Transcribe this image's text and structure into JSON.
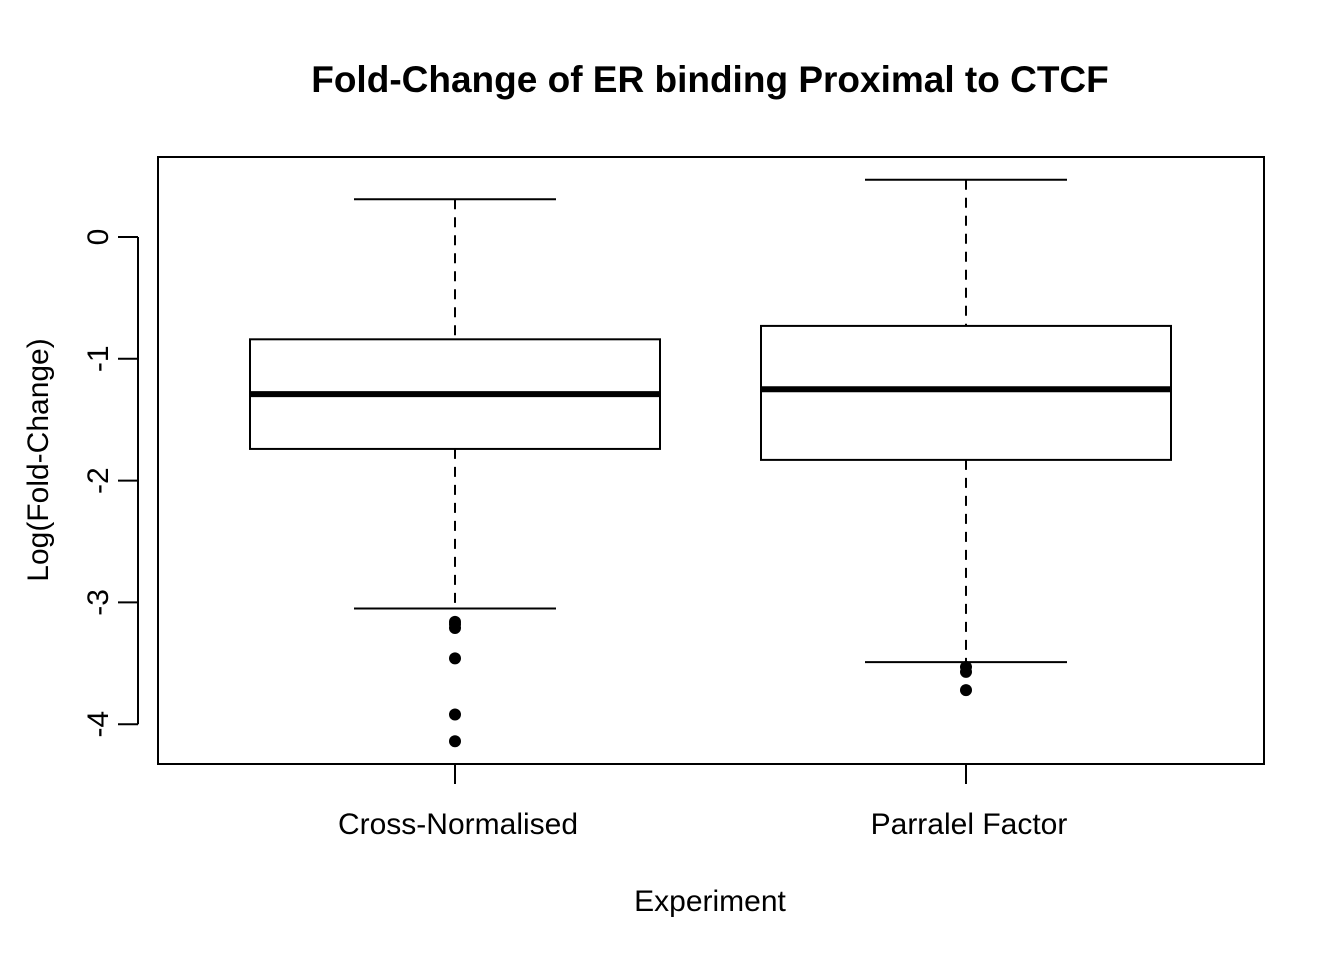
{
  "chart_data": {
    "type": "boxplot",
    "title": "Fold-Change of ER binding Proximal to CTCF",
    "xlabel": "Experiment",
    "ylabel": "Log(Fold-Change)",
    "ylim": [
      -4.3,
      0.65
    ],
    "yticks": [
      0,
      -1,
      -2,
      -3,
      -4
    ],
    "ytick_labels": [
      "0",
      "-1",
      "-2",
      "-3",
      "-4"
    ],
    "grid": false,
    "colors": {
      "box_fill": "#ffffff",
      "stroke": "#000000"
    },
    "categories": [
      "Cross-Normalised",
      "Parralel Factor"
    ],
    "boxes": [
      {
        "name": "Cross-Normalised",
        "whisker_low": -3.05,
        "q1": -1.74,
        "median": -1.29,
        "q3": -0.84,
        "whisker_high": 0.31,
        "outliers": [
          -3.16,
          -3.18,
          -3.21,
          -3.46,
          -3.92,
          -4.14
        ]
      },
      {
        "name": "Parralel Factor",
        "whisker_low": -3.49,
        "q1": -1.83,
        "median": -1.25,
        "q3": -0.73,
        "whisker_high": 0.47,
        "outliers": [
          -3.53,
          -3.57,
          -3.72
        ]
      }
    ]
  }
}
